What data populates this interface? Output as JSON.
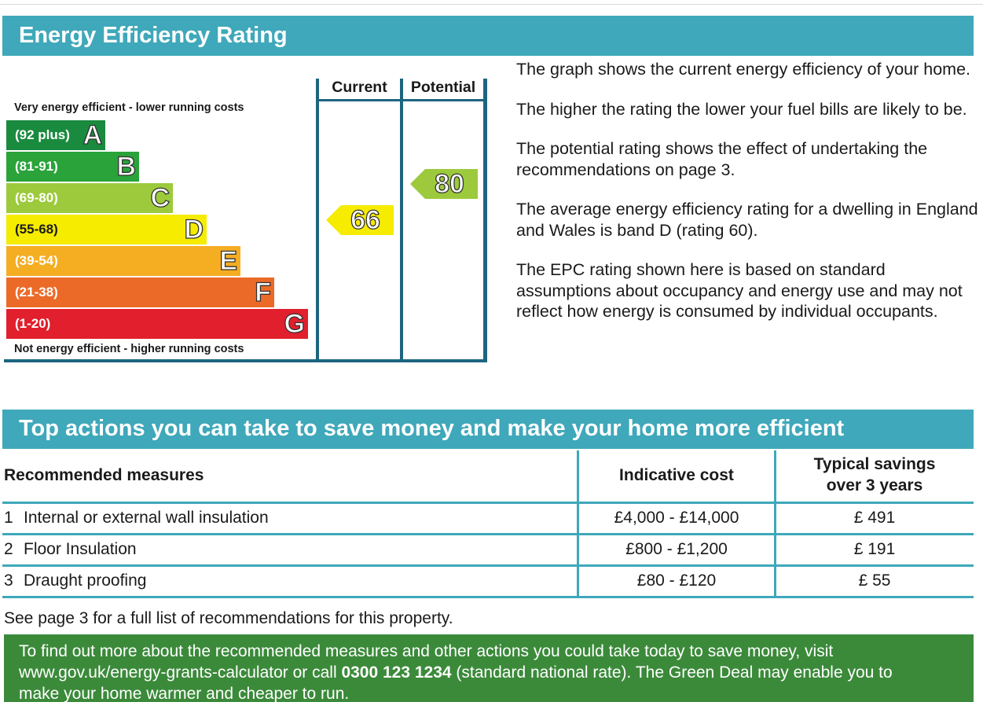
{
  "rating_section": {
    "title": "Energy Efficiency Rating",
    "top_caption": "Very energy efficient - lower running costs",
    "bottom_caption": "Not energy efficient - higher running costs",
    "columns": {
      "current": "Current",
      "potential": "Potential"
    },
    "bands": [
      {
        "range": "(92 plus)",
        "letter": "A",
        "color": "#1a8a3f"
      },
      {
        "range": "(81-91)",
        "letter": "B",
        "color": "#2aa33a"
      },
      {
        "range": "(69-80)",
        "letter": "C",
        "color": "#9cca3c"
      },
      {
        "range": "(55-68)",
        "letter": "D",
        "color": "#f5ec00"
      },
      {
        "range": "(39-54)",
        "letter": "E",
        "color": "#f5ad22"
      },
      {
        "range": "(21-38)",
        "letter": "F",
        "color": "#ec6a28"
      },
      {
        "range": "(1-20)",
        "letter": "G",
        "color": "#e21f2c"
      }
    ],
    "current_rating": {
      "value": "66",
      "color": "#f5ec00"
    },
    "potential_rating": {
      "value": "80",
      "color": "#9cca3c"
    }
  },
  "explanation": [
    "The graph shows the current energy efficiency of your home.",
    "The higher the rating the lower your fuel bills are likely to be.",
    "The potential rating shows the effect of undertaking the recommendations on page 3.",
    "The average energy efficiency rating for a dwelling in England and Wales is band D (rating 60).",
    "The EPC rating shown here is based on standard assumptions about occupancy and energy use and may not reflect how energy is consumed by individual occupants."
  ],
  "actions_section": {
    "title": "Top actions you can take to save money and make your home more efficient",
    "headers": {
      "measures": "Recommended measures",
      "cost": "Indicative cost",
      "savings_line1": "Typical savings",
      "savings_line2": "over 3 years"
    },
    "rows": [
      {
        "num": "1",
        "measure": "Internal or external wall insulation",
        "cost": "£4,000 - £14,000",
        "savings": "£ 491"
      },
      {
        "num": "2",
        "measure": "Floor Insulation",
        "cost": "£800 - £1,200",
        "savings": "£ 191"
      },
      {
        "num": "3",
        "measure": "Draught proofing",
        "cost": "£80 - £120",
        "savings": "£ 55"
      }
    ],
    "footnote": "See page 3 for a full list of recommendations for this property."
  },
  "green_box": {
    "line1": "To find out more about the recommended measures and other actions you could take today to save money, visit",
    "line2_pre": "www.gov.uk/energy-grants-calculator or call ",
    "phone": "0300 123 1234",
    "line2_post": " (standard national rate). The Green Deal may enable you to",
    "line3": "make your home warmer and cheaper to run."
  }
}
